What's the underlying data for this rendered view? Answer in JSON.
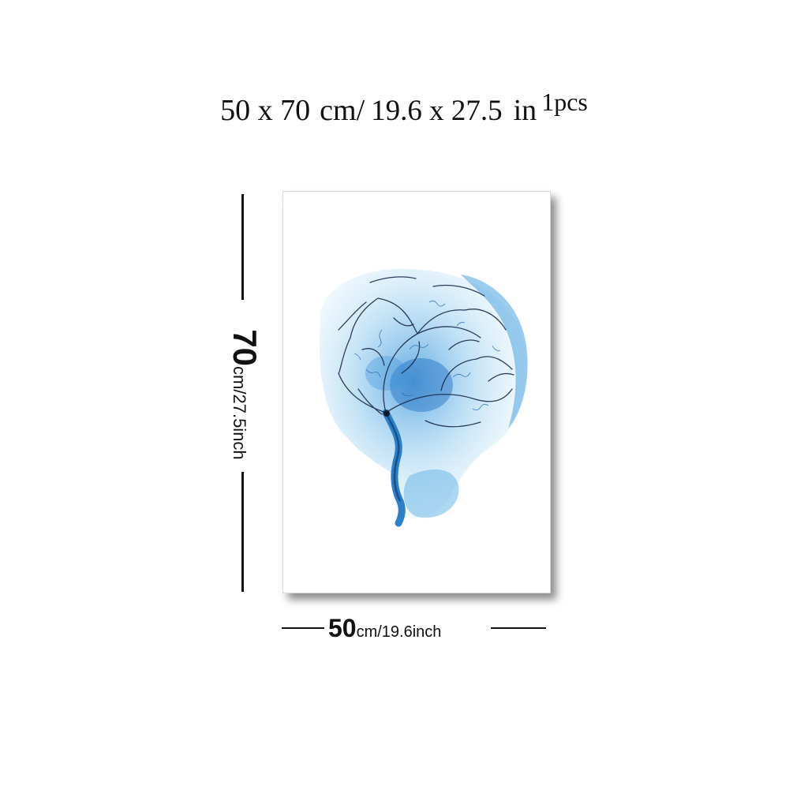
{
  "header": {
    "size_cm": "50 x 70",
    "unit_cm": "cm/",
    "size_in": "19.6 x 27.5",
    "unit_in": "in",
    "count": "1pcs"
  },
  "height_label": {
    "value": "70",
    "unit": "cm/27.5inch"
  },
  "width_label": {
    "value": "50",
    "unit": "cm/19.6inch"
  },
  "artwork": {
    "subject": "watercolor brain vessels",
    "colors": [
      "#2f8fd8",
      "#9fd3f2",
      "#1b2b4a"
    ]
  }
}
